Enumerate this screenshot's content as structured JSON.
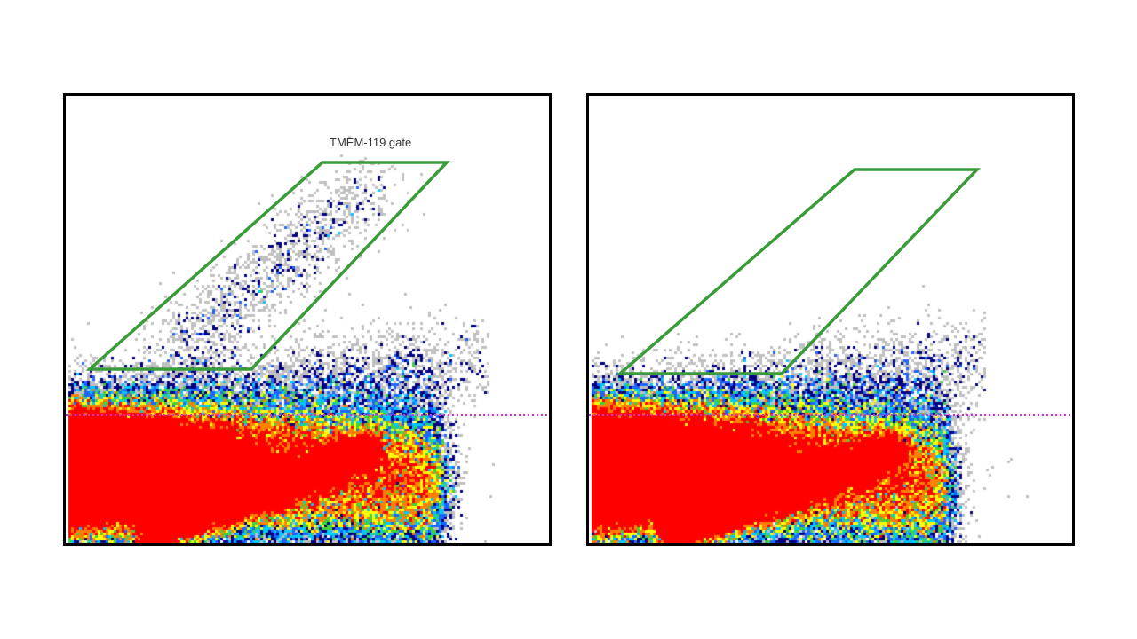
{
  "chart_data": [
    {
      "type": "heatmap",
      "panel": "left",
      "title": "",
      "xlabel": "",
      "ylabel": "",
      "gate": {
        "label": "TMEM-119 gate",
        "shape": "parallelogram",
        "color": "#3a9b3a"
      },
      "threshold_line": {
        "style": "dotted",
        "color": "#cc33cc"
      },
      "density_colors": [
        "#c0c0c0",
        "#000080",
        "#1e64ff",
        "#00c8ff",
        "#40d040",
        "#ffff00",
        "#ff8000",
        "#ff0000"
      ],
      "events_in_gate": "present",
      "grid": false,
      "legend": "none"
    },
    {
      "type": "heatmap",
      "panel": "right",
      "title": "",
      "xlabel": "",
      "ylabel": "",
      "gate": {
        "label": "",
        "shape": "parallelogram",
        "color": "#3a9b3a"
      },
      "threshold_line": {
        "style": "dotted",
        "color": "#cc33cc"
      },
      "density_colors": [
        "#c0c0c0",
        "#000080",
        "#1e64ff",
        "#00c8ff",
        "#40d040",
        "#ffff00",
        "#ff8000",
        "#ff0000"
      ],
      "events_in_gate": "absent",
      "grid": false,
      "legend": "none"
    }
  ]
}
